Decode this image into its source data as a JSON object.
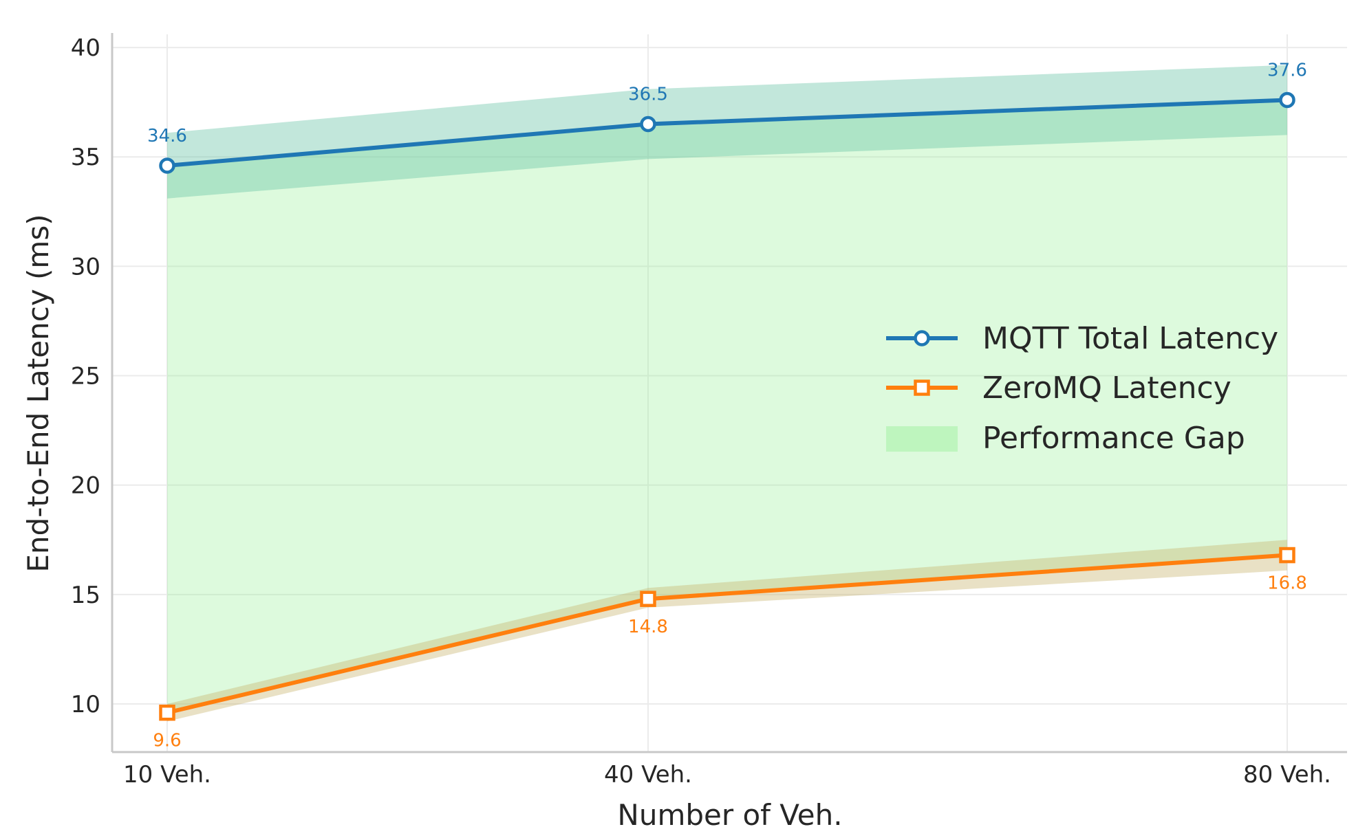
{
  "chart_data": {
    "type": "line",
    "x": [
      10,
      40,
      80
    ],
    "categories": [
      "10 Veh.",
      "40 Veh.",
      "80 Veh."
    ],
    "xlabel": "Number of Veh.",
    "ylabel": "End-to-End Latency (ms)",
    "ylim": [
      7.8,
      40.6
    ],
    "yticks": [
      10,
      15,
      20,
      25,
      30,
      35,
      40
    ],
    "grid": true,
    "legend_position": "center-right",
    "series": [
      {
        "name": "MQTT Total Latency",
        "marker": "circle",
        "color": "#1f77b4",
        "values": [
          34.6,
          36.5,
          37.6
        ],
        "band": {
          "lower": [
            33.1,
            34.9,
            36.0
          ],
          "upper": [
            36.1,
            38.1,
            39.2
          ],
          "color": "#66c2a5"
        },
        "labels": [
          "34.6",
          "36.5",
          "37.6"
        ]
      },
      {
        "name": "ZeroMQ Latency",
        "marker": "square",
        "color": "#ff7f0e",
        "values": [
          9.6,
          14.8,
          16.8
        ],
        "band": {
          "lower": [
            9.2,
            14.4,
            16.1
          ],
          "upper": [
            10.0,
            15.3,
            17.5
          ],
          "color": "#c8b56f"
        },
        "labels": [
          "9.6",
          "14.8",
          "16.8"
        ]
      }
    ],
    "gap": {
      "name": "Performance Gap",
      "color": "#90ee90"
    }
  }
}
